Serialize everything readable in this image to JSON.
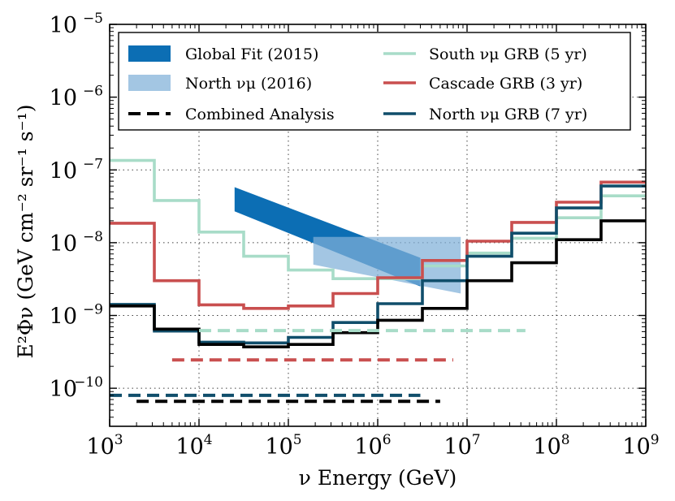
{
  "chart_data": {
    "type": "line",
    "xlabel": "ν Energy (GeV)",
    "ylabel": "E²Φν (GeV cm⁻² sr⁻¹ s⁻¹)",
    "x_scale": "log",
    "y_scale": "log",
    "xlim": [
      1000,
      1000000000
    ],
    "ylim": [
      3e-11,
      1e-05
    ],
    "grid": true,
    "legend_position": "top",
    "x_ticks": [
      {
        "base": "10",
        "exp": "3"
      },
      {
        "base": "10",
        "exp": "4"
      },
      {
        "base": "10",
        "exp": "5"
      },
      {
        "base": "10",
        "exp": "6"
      },
      {
        "base": "10",
        "exp": "7"
      },
      {
        "base": "10",
        "exp": "8"
      },
      {
        "base": "10",
        "exp": "9"
      }
    ],
    "y_ticks": [
      {
        "base": "10",
        "exp": "−10"
      },
      {
        "base": "10",
        "exp": "−9"
      },
      {
        "base": "10",
        "exp": "−8"
      },
      {
        "base": "10",
        "exp": "−7"
      },
      {
        "base": "10",
        "exp": "−6"
      },
      {
        "base": "10",
        "exp": "−5"
      }
    ],
    "bands": [
      {
        "name": "Global Fit (2015)",
        "color": "#0c6eb4",
        "opacity": 1.0,
        "polygon": [
          [
            25000,
            5.8e-08
          ],
          [
            3000000,
            6.2e-09
          ],
          [
            3000000,
            2.5e-09
          ],
          [
            25000,
            2.7e-08
          ]
        ]
      },
      {
        "name": "North νμ (2016)",
        "color": "#7fb0d8",
        "opacity": 0.72,
        "polygon": [
          [
            190000,
            1.2e-08
          ],
          [
            8500000,
            1.2e-08
          ],
          [
            8500000,
            2e-09
          ],
          [
            190000,
            5e-09
          ]
        ]
      }
    ],
    "series": [
      {
        "name": "South νμ GRB (5 yr)",
        "color": "#a8dcc8",
        "style": "step",
        "edges": [
          1000,
          3160,
          10000,
          31600,
          100000,
          316000,
          1000000,
          3160000,
          10000000,
          31600000,
          100000000,
          316000000,
          1000000000
        ],
        "values": [
          1.35e-07,
          3.8e-08,
          1.4e-08,
          6.5e-09,
          4.2e-09,
          3.2e-09,
          3.2e-09,
          4.8e-09,
          7.2e-09,
          1.15e-08,
          2.2e-08,
          4.4e-08
        ]
      },
      {
        "name": "Cascade GRB (3 yr)",
        "color": "#c94f4f",
        "style": "step",
        "edges": [
          1000,
          3160,
          10000,
          31600,
          100000,
          316000,
          1000000,
          3160000,
          10000000,
          31600000,
          100000000,
          316000000,
          1000000000
        ],
        "values": [
          1.85e-08,
          3e-09,
          1.4e-09,
          1.25e-09,
          1.35e-09,
          2e-09,
          3.3e-09,
          5.7e-09,
          1.05e-08,
          1.9e-08,
          3.6e-08,
          6.8e-08
        ]
      },
      {
        "name": "North νμ GRB (7 yr)",
        "color": "#104e6b",
        "style": "step",
        "edges": [
          1000,
          3160,
          10000,
          31600,
          100000,
          316000,
          1000000,
          3160000,
          10000000,
          31600000,
          100000000,
          316000000,
          1000000000
        ],
        "values": [
          1.42e-09,
          6.1e-10,
          4.3e-10,
          4.2e-10,
          5e-10,
          8e-10,
          1.45e-09,
          3e-09,
          6.5e-09,
          1.35e-08,
          3e-08,
          6e-08
        ]
      },
      {
        "name": "Combined Analysis",
        "color": "#000000",
        "style": "step",
        "edges": [
          1000,
          3160,
          10000,
          31600,
          100000,
          316000,
          1000000,
          3160000,
          10000000,
          31600000,
          100000000,
          316000000,
          1000000000
        ],
        "values": [
          1.35e-09,
          6.5e-10,
          4e-10,
          3.7e-10,
          4e-10,
          5.8e-10,
          8.6e-10,
          1.25e-09,
          3e-09,
          5.3e-09,
          1.1e-08,
          2e-08
        ]
      },
      {
        "name": "South νμ GRB (5 yr)",
        "color": "#a8dcc8",
        "style": "dashed",
        "x_range": [
          10000,
          45000000
        ],
        "value": 6.2e-10
      },
      {
        "name": "Cascade GRB (3 yr)",
        "color": "#c94f4f",
        "style": "dashed",
        "x_range": [
          5000,
          7000000
        ],
        "value": 2.45e-10
      },
      {
        "name": "North νμ GRB (7 yr)",
        "color": "#104e6b",
        "style": "dashed",
        "x_range": [
          1000,
          3000000
        ],
        "value": 8e-11
      },
      {
        "name": "Combined Analysis",
        "color": "#000000",
        "style": "dashed",
        "x_range": [
          2000,
          5000000
        ],
        "value": 6.6e-11
      }
    ],
    "legend": [
      {
        "label": "Global Fit (2015)",
        "kind": "patch",
        "color": "#0c6eb4",
        "opacity": 1.0
      },
      {
        "label": "North νμ (2016)",
        "kind": "patch",
        "color": "#7fb0d8",
        "opacity": 0.72
      },
      {
        "label": "Combined Analysis",
        "kind": "dash",
        "color": "#000000"
      },
      {
        "label": "South νμ GRB (5 yr)",
        "kind": "line",
        "color": "#a8dcc8"
      },
      {
        "label": "Cascade GRB (3 yr)",
        "kind": "line",
        "color": "#c94f4f"
      },
      {
        "label": "North νμ GRB (7 yr)",
        "kind": "line",
        "color": "#104e6b"
      }
    ]
  }
}
